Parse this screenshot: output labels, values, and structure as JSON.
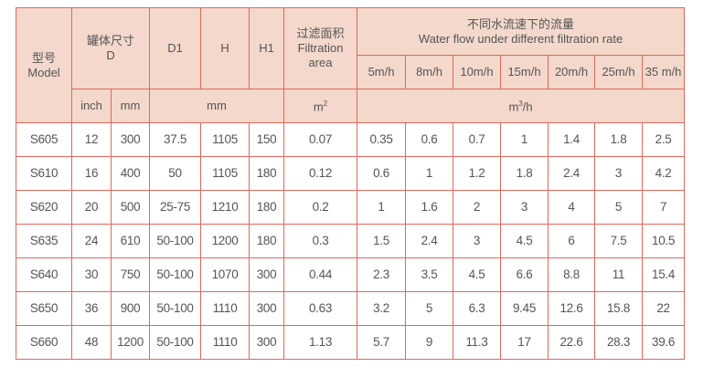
{
  "header": {
    "model": {
      "zh": "型号",
      "en": "Model"
    },
    "tank": {
      "zh": "罐体尺寸",
      "en": "D"
    },
    "d1": "D1",
    "h": "H",
    "h1": "H1",
    "area": {
      "zh": "过滤面积",
      "en1": "Filtration",
      "en2": "area"
    },
    "flow": {
      "zh": "不同水流速下的流量",
      "en": "Water flow under different filtration rate"
    },
    "rates": [
      "5m/h",
      "8m/h",
      "10m/h",
      "15m/h",
      "20m/h",
      "25m/h",
      "35 m/h"
    ],
    "units": {
      "inch": "inch",
      "mm": "mm",
      "dims_mm": "mm",
      "area_base": "m",
      "area_exp": "2",
      "flow_base": "m",
      "flow_exp": "3",
      "flow_tail": "/h"
    }
  },
  "rows": [
    [
      "S605",
      "12",
      "300",
      "37.5",
      "1105",
      "150",
      "0.07",
      "0.35",
      "0.6",
      "0.7",
      "1",
      "1.4",
      "1.8",
      "2.5"
    ],
    [
      "S610",
      "16",
      "400",
      "50",
      "1105",
      "180",
      "0.12",
      "0.6",
      "1",
      "1.2",
      "1.8",
      "2.4",
      "3",
      "4.2"
    ],
    [
      "S620",
      "20",
      "500",
      "25-75",
      "1210",
      "180",
      "0.2",
      "1",
      "1.6",
      "2",
      "3",
      "4",
      "5",
      "7"
    ],
    [
      "S635",
      "24",
      "610",
      "50-100",
      "1200",
      "180",
      "0.3",
      "1.5",
      "2.4",
      "3",
      "4.5",
      "6",
      "7.5",
      "10.5"
    ],
    [
      "S640",
      "30",
      "750",
      "50-100",
      "1070",
      "300",
      "0.44",
      "2.3",
      "3.5",
      "4.5",
      "6.6",
      "8.8",
      "11",
      "15.4"
    ],
    [
      "S650",
      "36",
      "900",
      "50-100",
      "1110",
      "300",
      "0.63",
      "3.2",
      "5",
      "6.3",
      "9.45",
      "12.6",
      "15.8",
      "22"
    ],
    [
      "S660",
      "48",
      "1200",
      "50-100",
      "1110",
      "300",
      "1.13",
      "5.7",
      "9",
      "11.3",
      "17",
      "22.6",
      "28.3",
      "39.6"
    ]
  ]
}
